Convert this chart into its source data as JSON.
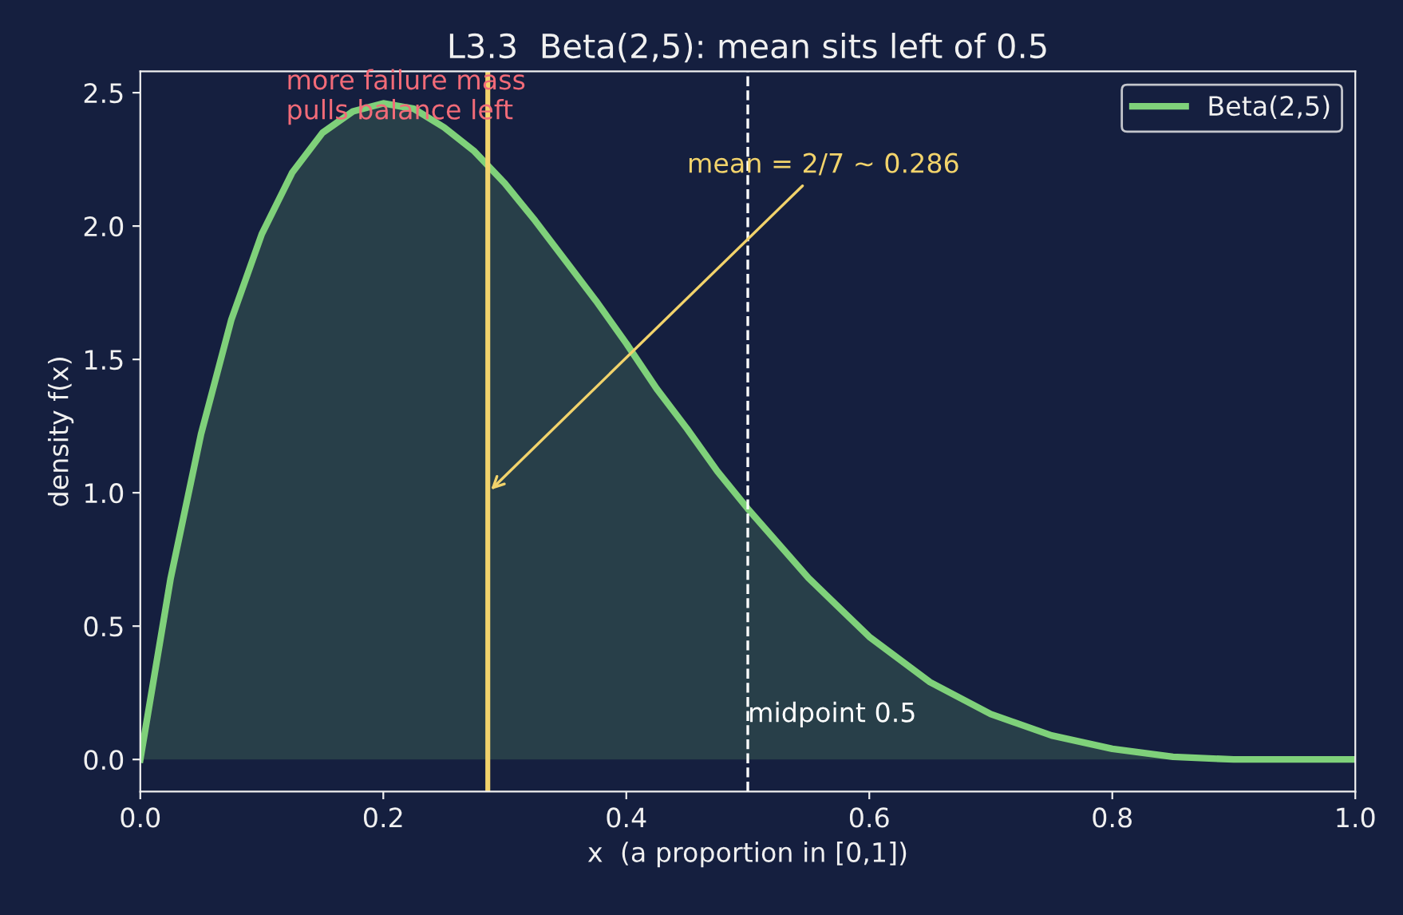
{
  "chart_data": {
    "type": "area",
    "title": "L3.3  Beta(2,5): mean sits left of 0.5",
    "xlabel": "x  (a proportion in [0,1])",
    "ylabel": "density f(x)",
    "series": [
      {
        "name": "Beta(2,5)",
        "color": "#7fd17a",
        "x": [
          0,
          0.025,
          0.05,
          0.075,
          0.1,
          0.125,
          0.15,
          0.175,
          0.2,
          0.225,
          0.25,
          0.275,
          0.3,
          0.325,
          0.35,
          0.375,
          0.4,
          0.425,
          0.45,
          0.475,
          0.5,
          0.55,
          0.6,
          0.65,
          0.7,
          0.75,
          0.8,
          0.85,
          0.9,
          0.95,
          1.0
        ],
        "values": [
          0,
          0.68,
          1.22,
          1.65,
          1.97,
          2.2,
          2.35,
          2.43,
          2.46,
          2.44,
          2.37,
          2.28,
          2.16,
          2.02,
          1.87,
          1.72,
          1.56,
          1.39,
          1.24,
          1.08,
          0.94,
          0.68,
          0.46,
          0.29,
          0.17,
          0.09,
          0.04,
          0.01,
          0,
          0,
          0
        ]
      }
    ],
    "xlim": [
      0,
      1
    ],
    "ylim": [
      -0.12,
      2.58
    ],
    "xticks": [
      {
        "value": 0,
        "label": "0.0"
      },
      0.2,
      0.4,
      0.6,
      0.8,
      {
        "value": 1,
        "label": "1.0"
      }
    ],
    "yticks": [
      {
        "value": 0,
        "label": "0.0"
      },
      0.5,
      {
        "value": 1,
        "label": "1.0"
      },
      1.5,
      {
        "value": 2,
        "label": "2.0"
      },
      2.5
    ],
    "ref_lines": [
      {
        "axis": "x",
        "value": 0.286,
        "color": "#f2d36b",
        "line_style": "solid"
      },
      {
        "axis": "x",
        "value": 0.5,
        "label": "midpoint 0.5",
        "color": "#ffffff",
        "line_style": "dashed"
      }
    ],
    "annotations": [
      {
        "text": "mean = 2/7 ~ 0.286",
        "x": 0.286,
        "y": 1.0
      },
      "more failure mass\npulls balance left"
    ],
    "legend": "top right",
    "grid": false
  }
}
